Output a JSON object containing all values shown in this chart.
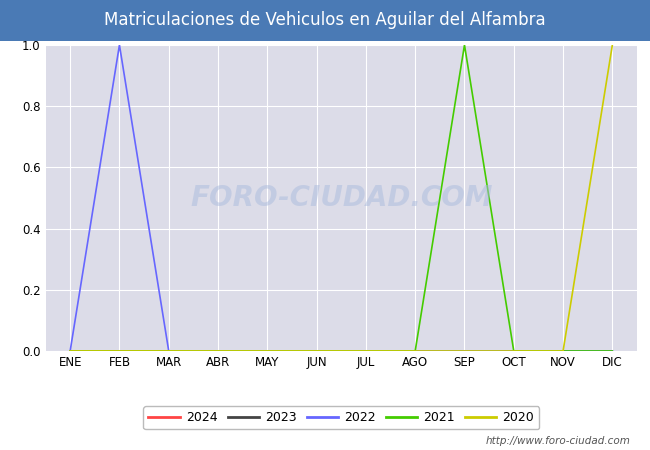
{
  "title": "Matriculaciones de Vehiculos en Aguilar del Alfambra",
  "title_bg_color": "#4a7ab5",
  "title_text_color": "white",
  "months": [
    "ENE",
    "FEB",
    "MAR",
    "ABR",
    "MAY",
    "JUN",
    "JUL",
    "AGO",
    "SEP",
    "OCT",
    "NOV",
    "DIC"
  ],
  "ylim": [
    0.0,
    1.0
  ],
  "yticks": [
    0.0,
    0.2,
    0.4,
    0.6,
    0.8,
    1.0
  ],
  "series": {
    "2024": {
      "color": "#ff4444",
      "data": [
        0,
        0,
        0,
        0,
        0,
        0,
        0,
        0,
        0,
        0,
        0,
        0
      ]
    },
    "2023": {
      "color": "#444444",
      "data": [
        0,
        0,
        0,
        0,
        0,
        0,
        0,
        0,
        0,
        0,
        0,
        0
      ]
    },
    "2022": {
      "color": "#6666ff",
      "data": [
        0,
        1,
        0,
        0,
        0,
        0,
        0,
        0,
        0,
        0,
        0,
        0
      ]
    },
    "2021": {
      "color": "#44cc00",
      "data": [
        0,
        0,
        0,
        0,
        0,
        0,
        0,
        0,
        1,
        0,
        0,
        0
      ]
    },
    "2020": {
      "color": "#cccc00",
      "data": [
        0,
        0,
        0,
        0,
        0,
        0,
        0,
        0,
        0,
        0,
        0,
        1
      ]
    }
  },
  "legend_order": [
    "2024",
    "2023",
    "2022",
    "2021",
    "2020"
  ],
  "watermark": "http://www.foro-ciudad.com",
  "bg_plot_color": "#dcdce8",
  "grid_color": "#ffffff",
  "fig_bg_color": "#ffffff",
  "title_fontsize": 12,
  "tick_fontsize": 8.5
}
